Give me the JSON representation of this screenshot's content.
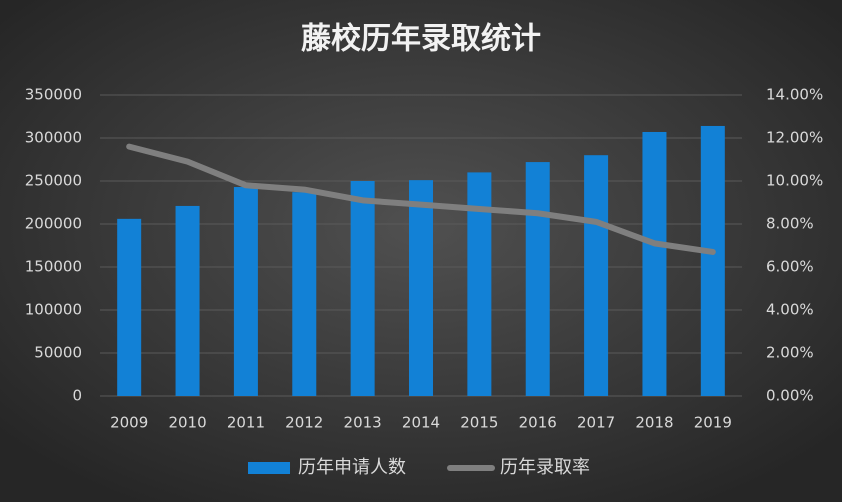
{
  "chart_data": {
    "type": "bar",
    "title": "藤校历年录取统计",
    "categories": [
      "2009",
      "2010",
      "2011",
      "2012",
      "2013",
      "2014",
      "2015",
      "2016",
      "2017",
      "2018",
      "2019"
    ],
    "series": [
      {
        "name": "历年申请人数",
        "type": "bar",
        "color": "#1281d6",
        "values": [
          206000,
          221000,
          243000,
          237000,
          250000,
          251000,
          260000,
          272000,
          280000,
          307000,
          314000
        ]
      },
      {
        "name": "历年录取率",
        "type": "line",
        "axis": "y2",
        "color": "#7f7f7f",
        "values": [
          11.6,
          10.9,
          9.8,
          9.6,
          9.1,
          8.9,
          8.7,
          8.5,
          8.1,
          7.1,
          6.7
        ]
      }
    ],
    "ylim": [
      0,
      350000
    ],
    "yticks": [
      0,
      50000,
      100000,
      150000,
      200000,
      250000,
      300000,
      350000
    ],
    "y2lim": [
      0,
      14
    ],
    "y2ticks": [
      {
        "value": 0,
        "label": "0.00%"
      },
      {
        "value": 2,
        "label": "2.00%"
      },
      {
        "value": 4,
        "label": "4.00%"
      },
      {
        "value": 6,
        "label": "6.00%"
      },
      {
        "value": 8,
        "label": "8.00%"
      },
      {
        "value": 10,
        "label": "10.00%"
      },
      {
        "value": 12,
        "label": "12.00%"
      },
      {
        "value": 14,
        "label": "14.00%"
      }
    ],
    "grid": true,
    "legend": "bottom"
  }
}
